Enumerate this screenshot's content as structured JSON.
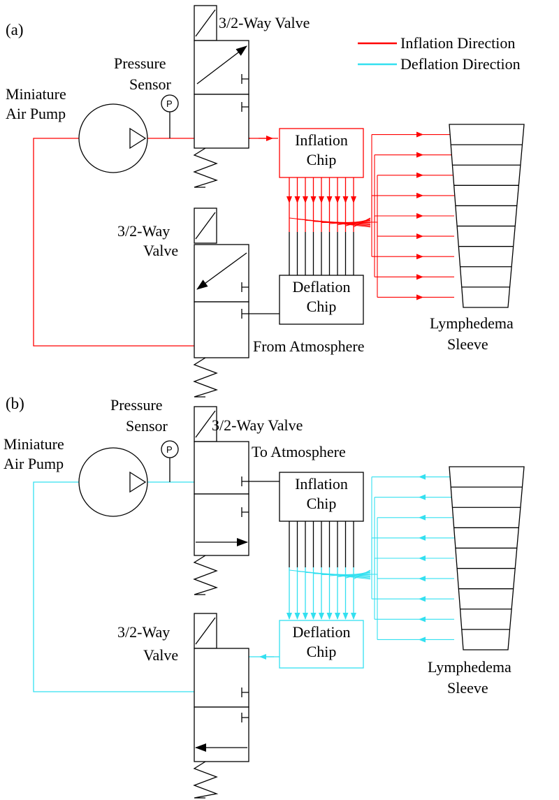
{
  "panel_a": {
    "label": "(a)",
    "pump_label_1": "Miniature",
    "pump_label_2": "Air Pump",
    "sensor_label_1": "Pressure",
    "sensor_label_2": "Sensor",
    "sensor_symbol": "P",
    "valve_top_label": "3/2-Way Valve",
    "valve_bottom_label_1": "3/2-Way",
    "valve_bottom_label_2": "Valve",
    "inflation_chip_1": "Inflation",
    "inflation_chip_2": "Chip",
    "deflation_chip_1": "Deflation",
    "deflation_chip_2": "Chip",
    "from_atmosphere": "From Atmosphere",
    "sleeve_label_1": "Lymphedema",
    "sleeve_label_2": "Sleeve"
  },
  "panel_b": {
    "label": "(b)",
    "pump_label_1": "Miniature",
    "pump_label_2": "Air Pump",
    "sensor_label_1": "Pressure",
    "sensor_label_2": "Sensor",
    "sensor_symbol": "P",
    "valve_top_label": "3/2-Way Valve",
    "to_atmosphere": "To Atmosphere",
    "valve_bottom_label_1": "3/2-Way",
    "valve_bottom_label_2": "Valve",
    "inflation_chip_1": "Inflation",
    "inflation_chip_2": "Chip",
    "deflation_chip_1": "Deflation",
    "deflation_chip_2": "Chip",
    "sleeve_label_1": "Lymphedema",
    "sleeve_label_2": "Sleeve"
  },
  "legend": {
    "inflation": "Inflation Direction",
    "deflation": "Deflation Direction",
    "inflation_color": "#ff0000",
    "deflation_color": "#33e0f0"
  }
}
